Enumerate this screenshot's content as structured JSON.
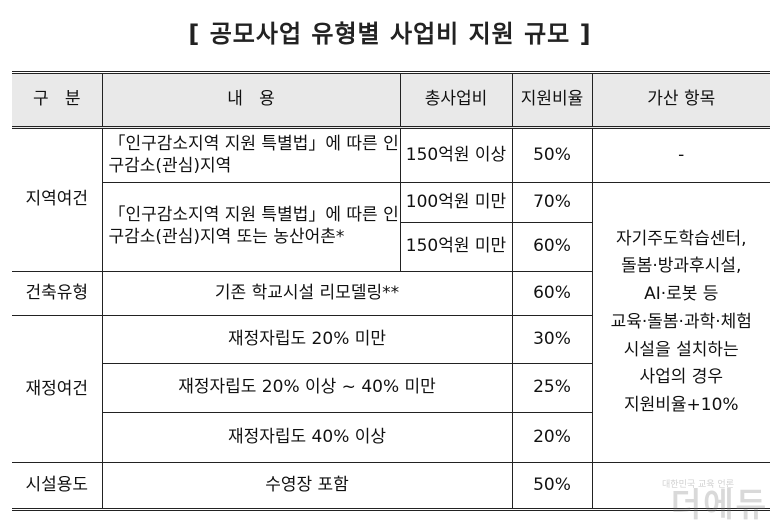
{
  "title": "[ 공모사업 유형별 사업비 지원 규모 ]",
  "headers": [
    "구   분",
    "내   용",
    "총사업비",
    "지원비율",
    "가산 항목"
  ],
  "categories": {
    "region": "지역여건",
    "building": "건축유형",
    "finance": "재정여건",
    "facility": "시설용도"
  },
  "rows": {
    "r1": {
      "content": "「인구감소지역 지원 특별법」에 따른 인구감소(관심)지역",
      "cost": "150억원 이상",
      "ratio": "50%",
      "bonus": "-"
    },
    "r2": {
      "content": "「인구감소지역 지원 특별법」에 따른 인구감소(관심)지역 또는 농산어촌*",
      "cost_a": "100억원 미만",
      "ratio_a": "70%",
      "cost_b": "150억원 미만",
      "ratio_b": "60%"
    },
    "r3": {
      "content": "기존 학교시설 리모델링**",
      "ratio": "60%"
    },
    "r4": {
      "content": "재정자립도 20% 미만",
      "ratio": "30%"
    },
    "r5": {
      "content": "재정자립도 20% 이상 ~ 40% 미만",
      "ratio": "25%"
    },
    "r6": {
      "content": "재정자립도 40% 이상",
      "ratio": "20%"
    },
    "r7": {
      "content": "수영장 포함",
      "ratio": "50%"
    }
  },
  "bonus_lines": [
    "자기주도학습센터,",
    "돌봄·방과후시설,",
    "AI·로봇 등",
    "교육·돌봄·과학·체험",
    "시설을 설치하는",
    "사업의 경우",
    "지원비율+10%"
  ],
  "watermark": "더에듀",
  "watermark_small": "대한민국 교육 언론"
}
